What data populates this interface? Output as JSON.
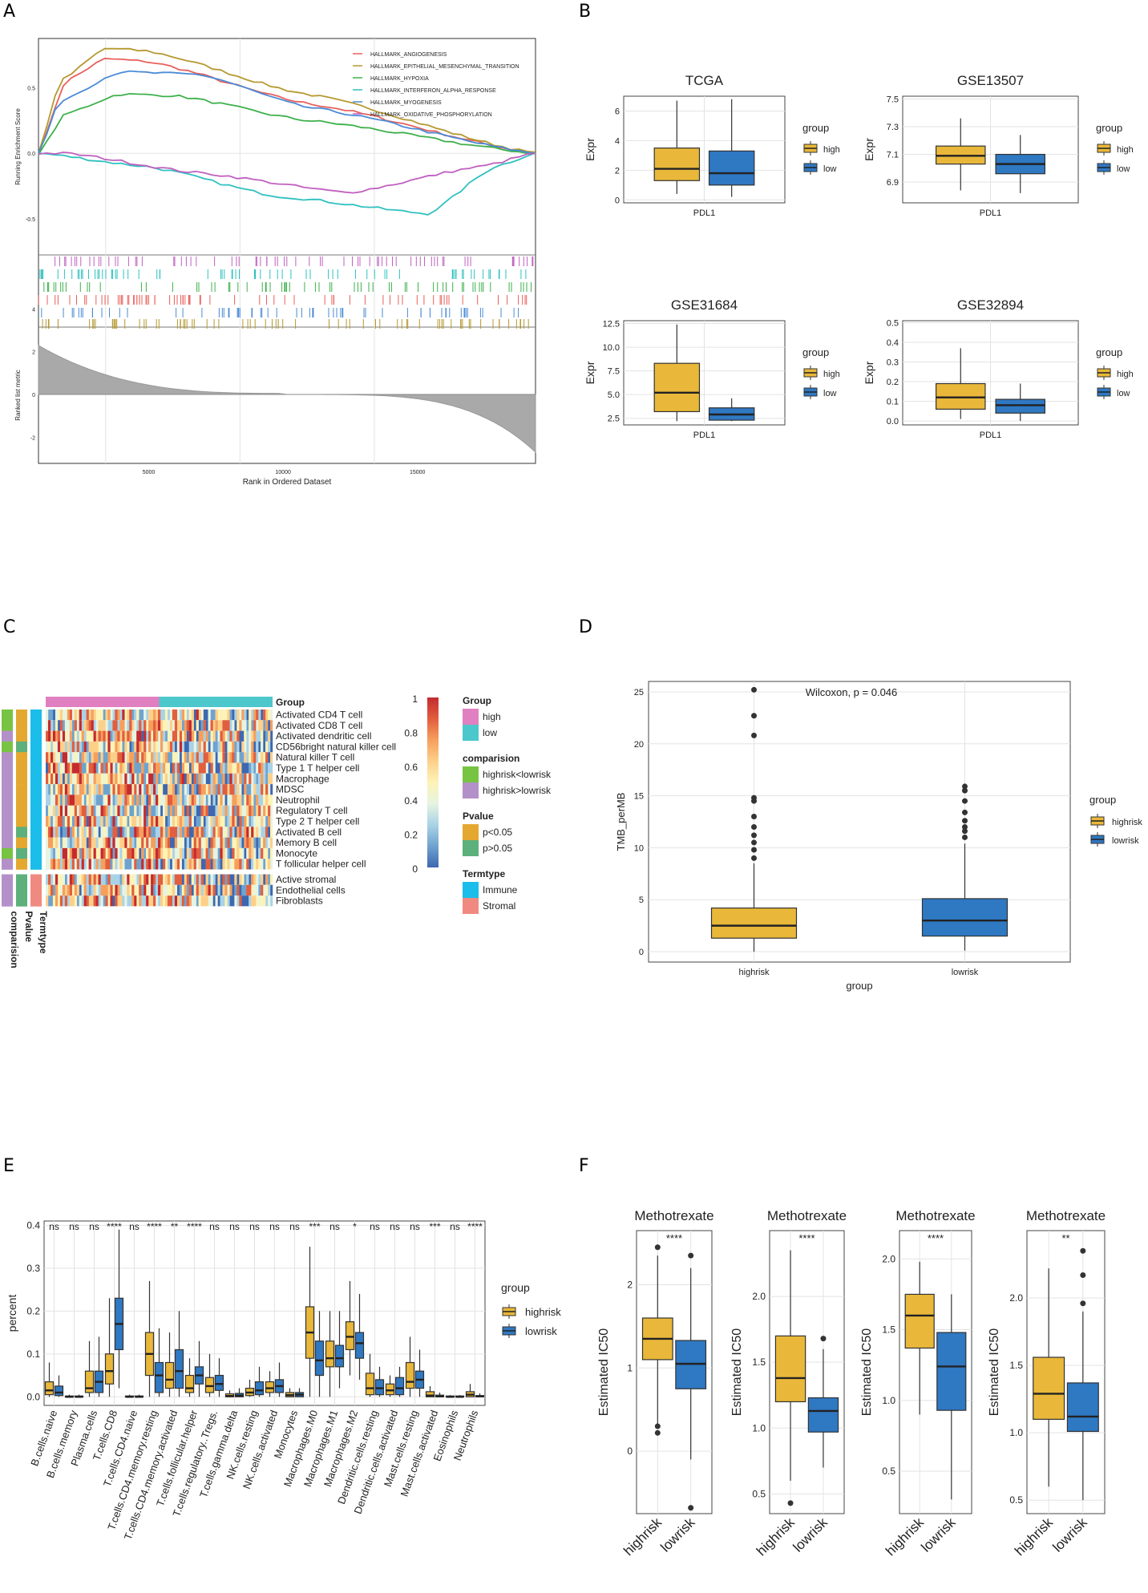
{
  "panel_labels": [
    "A",
    "B",
    "C",
    "D",
    "E",
    "F"
  ],
  "colors": {
    "high": "#E9B83A",
    "low": "#2F78C2",
    "pink": "#E080C0",
    "teal": "#4CC7CC",
    "green": "#76C442",
    "lavender": "#B490C9",
    "cyan": "#1BBDEA",
    "salmon": "#F08A80",
    "darkgreen": "#5DB07C",
    "gold": "#E4A830",
    "grid": "#e3e3e3",
    "gsea": [
      "#E8605C",
      "#B59930",
      "#3DB04B",
      "#2FC1C0",
      "#4A8BD6",
      "#C060C0"
    ]
  },
  "chart_data": [
    {
      "panel": "A",
      "type": "line",
      "ylabel": "Running Enrichment Score",
      "xlabel": "Rank in Ordered Dataset",
      "xticks": [
        "5000",
        "10000",
        "15000"
      ],
      "yticks": [
        "0.5",
        "0.0",
        "-0.5"
      ],
      "metric_ylabel": "Ranked list metric",
      "metric_yticks": [
        "4",
        "2",
        "0",
        "-2"
      ],
      "xlim": [
        0,
        18500
      ],
      "ylim": [
        -0.75,
        0.85
      ],
      "series": [
        {
          "name": "HALLMARK_ANGIOGENESIS",
          "x": [
            0,
            1000,
            2500,
            4000,
            10000,
            18500
          ],
          "y": [
            0,
            0.55,
            0.72,
            0.7,
            0.38,
            0
          ]
        },
        {
          "name": "HALLMARK_EPITHELIAL_MESENCHYMAL_TRANSITION",
          "x": [
            0,
            800,
            2500,
            4000,
            10000,
            18500
          ],
          "y": [
            0,
            0.55,
            0.8,
            0.78,
            0.45,
            0
          ]
        },
        {
          "name": "HALLMARK_HYPOXIA",
          "x": [
            0,
            1000,
            3000,
            5000,
            10000,
            18500
          ],
          "y": [
            0,
            0.3,
            0.45,
            0.44,
            0.25,
            0
          ]
        },
        {
          "name": "HALLMARK_INTERFERON_ALPHA_RESPONSE",
          "x": [
            0,
            4000,
            9000,
            14500,
            17000,
            18500
          ],
          "y": [
            0,
            -0.1,
            -0.33,
            -0.46,
            -0.1,
            0
          ]
        },
        {
          "name": "HALLMARK_MYOGENESIS",
          "x": [
            0,
            800,
            3000,
            6000,
            10000,
            18500
          ],
          "y": [
            0,
            0.4,
            0.62,
            0.6,
            0.35,
            0
          ]
        },
        {
          "name": "HALLMARK_OXIDATIVE_PHOSPHORYLATION",
          "x": [
            0,
            1000,
            6000,
            11500,
            16500,
            18500
          ],
          "y": [
            0,
            0.0,
            -0.15,
            -0.3,
            -0.1,
            0
          ]
        }
      ]
    },
    {
      "panel": "B",
      "type": "box",
      "legend_title": "group",
      "legend": [
        "high",
        "low"
      ],
      "ylabel": "Expr",
      "xlabel": "PDL1",
      "plots": [
        {
          "title": "TCGA",
          "yticks": [
            "0",
            "2",
            "4",
            "6"
          ],
          "ylim": [
            -0.2,
            7
          ],
          "boxes": [
            {
              "name": "high",
              "min": 0.4,
              "q1": 1.3,
              "med": 2.1,
              "q3": 3.5,
              "max": 6.7
            },
            {
              "name": "low",
              "min": 0.2,
              "q1": 1.0,
              "med": 1.8,
              "q3": 3.3,
              "max": 6.8
            }
          ]
        },
        {
          "title": "GSE13507",
          "yticks": [
            "6.9",
            "7.1",
            "7.3",
            "7.5"
          ],
          "ylim": [
            6.75,
            7.52
          ],
          "boxes": [
            {
              "name": "high",
              "min": 6.84,
              "q1": 7.03,
              "med": 7.09,
              "q3": 7.16,
              "max": 7.36
            },
            {
              "name": "low",
              "min": 6.82,
              "q1": 6.96,
              "med": 7.03,
              "q3": 7.1,
              "max": 7.24
            }
          ]
        },
        {
          "title": "GSE31684",
          "yticks": [
            "2.5",
            "5.0",
            "7.5",
            "10.0",
            "12.5"
          ],
          "ylim": [
            1.8,
            12.8
          ],
          "boxes": [
            {
              "name": "high",
              "min": 2.2,
              "q1": 3.2,
              "med": 5.2,
              "q3": 8.3,
              "max": 12.4
            },
            {
              "name": "low",
              "min": 2.2,
              "q1": 2.3,
              "med": 2.9,
              "q3": 3.6,
              "max": 4.6
            }
          ]
        },
        {
          "title": "GSE32894",
          "yticks": [
            "0.0",
            "0.1",
            "0.2",
            "0.3",
            "0.4",
            "0.5"
          ],
          "ylim": [
            -0.02,
            0.51
          ],
          "boxes": [
            {
              "name": "high",
              "min": 0.01,
              "q1": 0.06,
              "med": 0.12,
              "q3": 0.19,
              "max": 0.37
            },
            {
              "name": "low",
              "min": 0.0,
              "q1": 0.04,
              "med": 0.08,
              "q3": 0.11,
              "max": 0.19
            }
          ]
        }
      ]
    },
    {
      "panel": "C",
      "type": "heatmap",
      "annotation_title": "Group",
      "rows": [
        "Activated CD4 T cell",
        "Activated CD8 T cell",
        "Activated dendritic cell",
        "CD56bright natural killer cell",
        "Natural killer T cell",
        "Type 1 T helper cell",
        "Macrophage",
        "MDSC",
        "Neutrophil",
        "Regulatory T cell",
        "Type 2 T helper cell",
        "Activated B cell",
        "Memory B cell",
        "Monocyte",
        "T follicular helper cell",
        "Active stromal",
        "Endothelial cells",
        "Fibroblasts"
      ],
      "side_labels": [
        "comparision",
        "Pvalue",
        "Termtype"
      ],
      "scale_ticks": [
        "1",
        "0.8",
        "0.6",
        "0.4",
        "0.2",
        "0"
      ],
      "legend_groups": [
        {
          "title": "Group",
          "items": [
            "high",
            "low"
          ]
        },
        {
          "title": "comparision",
          "items": [
            "highrisk<lowrisk",
            "highrisk>lowrisk"
          ]
        },
        {
          "title": "Pvalue",
          "items": [
            "p<0.05",
            "p>0.05"
          ]
        },
        {
          "title": "Termtype",
          "items": [
            "Immune",
            "Stromal"
          ]
        }
      ]
    },
    {
      "panel": "D",
      "type": "box",
      "annotation": "Wilcoxon, p = 0.046",
      "ylabel": "TMB_perMB",
      "xlabel": "group",
      "categories": [
        "highrisk",
        "lowrisk"
      ],
      "yticks": [
        "0",
        "5",
        "10",
        "15",
        "20",
        "25"
      ],
      "ylim": [
        -1,
        26
      ],
      "legend_title": "group",
      "legend": [
        "highrisk",
        "lowrisk"
      ],
      "boxes": [
        {
          "name": "highrisk",
          "min": 0,
          "q1": 1.3,
          "med": 2.5,
          "q3": 4.2,
          "max": 8.5,
          "outliers": [
            9,
            9.8,
            10.5,
            11.2,
            12,
            13,
            14.5,
            14.8,
            20.8,
            22.7,
            25.2
          ]
        },
        {
          "name": "lowrisk",
          "min": 0.1,
          "q1": 1.5,
          "med": 3.0,
          "q3": 5.1,
          "max": 10.4,
          "outliers": [
            11,
            11.6,
            12,
            12.6,
            13.4,
            14.5,
            15.5,
            15.9
          ]
        }
      ]
    },
    {
      "panel": "E",
      "type": "box",
      "ylabel": "percent",
      "yticks": [
        "0.0",
        "0.1",
        "0.2",
        "0.3",
        "0.4"
      ],
      "ylim": [
        -0.02,
        0.41
      ],
      "legend_title": "group",
      "legend": [
        "highrisk",
        "lowrisk"
      ],
      "categories": [
        "B.cells.naive",
        "B.cells.memory",
        "Plasma.cells",
        "T.cells.CD8",
        "T.cells.CD4.naive",
        "T.cells.CD4.memory.resting",
        "T.cells.CD4.memory.activated",
        "T.cells.follicular.helper",
        "T.cells.regulatory..Tregs.",
        "T.cells.gamma.delta",
        "NK.cells.resting",
        "NK.cells.activated",
        "Monocytes",
        "Macrophages.M0",
        "Macrophages.M1",
        "Macrophages.M2",
        "Dendritic.cells.resting",
        "Dendritic.cells.activated",
        "Mast.cells.resting",
        "Mast.cells.activated",
        "Eosinophils",
        "Neutrophils"
      ],
      "significance": [
        "ns",
        "ns",
        "ns",
        "****",
        "ns",
        "****",
        "**",
        "****",
        "ns",
        "ns",
        "ns",
        "ns",
        "ns",
        "***",
        "ns",
        "*",
        "ns",
        "ns",
        "ns",
        "***",
        "ns",
        "****"
      ],
      "boxes": [
        [
          {
            "min": 0,
            "q1": 0.005,
            "med": 0.015,
            "q3": 0.035,
            "max": 0.08
          },
          {
            "min": 0,
            "q1": 0.003,
            "med": 0.01,
            "q3": 0.025,
            "max": 0.05
          }
        ],
        [
          {
            "min": 0,
            "q1": 0,
            "med": 0,
            "q3": 0.002,
            "max": 0.005
          },
          {
            "min": 0,
            "q1": 0,
            "med": 0,
            "q3": 0.002,
            "max": 0.005
          }
        ],
        [
          {
            "min": 0,
            "q1": 0.01,
            "med": 0.02,
            "q3": 0.06,
            "max": 0.13
          },
          {
            "min": 0,
            "q1": 0.01,
            "med": 0.035,
            "q3": 0.06,
            "max": 0.14
          }
        ],
        [
          {
            "min": 0,
            "q1": 0.03,
            "med": 0.06,
            "q3": 0.1,
            "max": 0.23
          },
          {
            "min": 0.02,
            "q1": 0.11,
            "med": 0.17,
            "q3": 0.23,
            "max": 0.39
          }
        ],
        [
          {
            "min": 0,
            "q1": 0,
            "med": 0,
            "q3": 0.002,
            "max": 0.005
          },
          {
            "min": 0,
            "q1": 0,
            "med": 0,
            "q3": 0.002,
            "max": 0.005
          }
        ],
        [
          {
            "min": 0,
            "q1": 0.05,
            "med": 0.1,
            "q3": 0.15,
            "max": 0.27
          },
          {
            "min": 0,
            "q1": 0.01,
            "med": 0.05,
            "q3": 0.08,
            "max": 0.16
          }
        ],
        [
          {
            "min": 0,
            "q1": 0.02,
            "med": 0.04,
            "q3": 0.08,
            "max": 0.15
          },
          {
            "min": 0,
            "q1": 0.02,
            "med": 0.06,
            "q3": 0.11,
            "max": 0.2
          }
        ],
        [
          {
            "min": 0,
            "q1": 0.01,
            "med": 0.02,
            "q3": 0.05,
            "max": 0.09
          },
          {
            "min": 0,
            "q1": 0.03,
            "med": 0.05,
            "q3": 0.07,
            "max": 0.13
          }
        ],
        [
          {
            "min": 0,
            "q1": 0.01,
            "med": 0.025,
            "q3": 0.045,
            "max": 0.1
          },
          {
            "min": 0,
            "q1": 0.015,
            "med": 0.03,
            "q3": 0.05,
            "max": 0.09
          }
        ],
        [
          {
            "min": 0,
            "q1": 0,
            "med": 0.002,
            "q3": 0.007,
            "max": 0.015
          },
          {
            "min": 0,
            "q1": 0,
            "med": 0.003,
            "q3": 0.008,
            "max": 0.02
          }
        ],
        [
          {
            "min": 0,
            "q1": 0.003,
            "med": 0.01,
            "q3": 0.02,
            "max": 0.04
          },
          {
            "min": 0,
            "q1": 0.005,
            "med": 0.015,
            "q3": 0.035,
            "max": 0.07
          }
        ],
        [
          {
            "min": 0,
            "q1": 0.01,
            "med": 0.02,
            "q3": 0.035,
            "max": 0.06
          },
          {
            "min": 0,
            "q1": 0.01,
            "med": 0.025,
            "q3": 0.04,
            "max": 0.08
          }
        ],
        [
          {
            "min": 0,
            "q1": 0,
            "med": 0.004,
            "q3": 0.01,
            "max": 0.02
          },
          {
            "min": 0,
            "q1": 0,
            "med": 0.005,
            "q3": 0.01,
            "max": 0.02
          }
        ],
        [
          {
            "min": 0,
            "q1": 0.09,
            "med": 0.15,
            "q3": 0.21,
            "max": 0.35
          },
          {
            "min": 0,
            "q1": 0.05,
            "med": 0.085,
            "q3": 0.13,
            "max": 0.2
          }
        ],
        [
          {
            "min": 0,
            "q1": 0.07,
            "med": 0.09,
            "q3": 0.13,
            "max": 0.2
          },
          {
            "min": 0.02,
            "q1": 0.07,
            "med": 0.09,
            "q3": 0.12,
            "max": 0.2
          }
        ],
        [
          {
            "min": 0.05,
            "q1": 0.11,
            "med": 0.14,
            "q3": 0.175,
            "max": 0.27
          },
          {
            "min": 0.04,
            "q1": 0.09,
            "med": 0.125,
            "q3": 0.15,
            "max": 0.24
          }
        ],
        [
          {
            "min": 0,
            "q1": 0.005,
            "med": 0.02,
            "q3": 0.055,
            "max": 0.1
          },
          {
            "min": 0,
            "q1": 0.005,
            "med": 0.02,
            "q3": 0.04,
            "max": 0.07
          }
        ],
        [
          {
            "min": 0,
            "q1": 0.005,
            "med": 0.015,
            "q3": 0.03,
            "max": 0.05
          },
          {
            "min": 0,
            "q1": 0.005,
            "med": 0.02,
            "q3": 0.045,
            "max": 0.07
          }
        ],
        [
          {
            "min": 0,
            "q1": 0.02,
            "med": 0.035,
            "q3": 0.08,
            "max": 0.14
          },
          {
            "min": 0,
            "q1": 0.02,
            "med": 0.04,
            "q3": 0.06,
            "max": 0.11
          }
        ],
        [
          {
            "min": 0,
            "q1": 0,
            "med": 0.003,
            "q3": 0.012,
            "max": 0.025
          },
          {
            "min": 0,
            "q1": 0,
            "med": 0.001,
            "q3": 0.004,
            "max": 0.01
          }
        ],
        [
          {
            "min": 0,
            "q1": 0,
            "med": 0,
            "q3": 0.002,
            "max": 0.004
          },
          {
            "min": 0,
            "q1": 0,
            "med": 0,
            "q3": 0.002,
            "max": 0.004
          }
        ],
        [
          {
            "min": 0,
            "q1": 0,
            "med": 0.005,
            "q3": 0.012,
            "max": 0.03
          },
          {
            "min": 0,
            "q1": 0,
            "med": 0.001,
            "q3": 0.003,
            "max": 0.008
          }
        ]
      ]
    },
    {
      "panel": "F",
      "type": "box",
      "ylabel": "Estimated IC50",
      "categories": [
        "highrisk",
        "lowrisk"
      ],
      "plots": [
        {
          "title": "Methotrexate",
          "sig": "****",
          "yticks": [
            "0",
            "1",
            "2"
          ],
          "ylim": [
            -0.75,
            2.65
          ],
          "boxes": [
            {
              "min": 0.3,
              "q1": 1.1,
              "med": 1.35,
              "q3": 1.6,
              "max": 2.35,
              "outliers": [
                0.22,
                0.3,
                2.45
              ]
            },
            {
              "min": -0.1,
              "q1": 0.75,
              "med": 1.05,
              "q3": 1.33,
              "max": 2.2,
              "outliers": [
                -0.68,
                2.35
              ]
            }
          ]
        },
        {
          "title": "Methotrexate",
          "sig": "****",
          "yticks": [
            "0.5",
            "1.0",
            "1.5",
            "2.0"
          ],
          "ylim": [
            0.35,
            2.5
          ],
          "boxes": [
            {
              "min": 0.6,
              "q1": 1.2,
              "med": 1.38,
              "q3": 1.7,
              "max": 2.35,
              "outliers": [
                0.43
              ]
            },
            {
              "min": 0.7,
              "q1": 0.97,
              "med": 1.13,
              "q3": 1.23,
              "max": 1.6,
              "outliers": [
                1.68
              ]
            }
          ]
        },
        {
          "title": "Methotrexate",
          "sig": "****",
          "yticks": [
            "0.5",
            "1.0",
            "1.5",
            "2.0"
          ],
          "ylim": [
            0.2,
            2.2
          ],
          "boxes": [
            {
              "min": 0.9,
              "q1": 1.37,
              "med": 1.6,
              "q3": 1.75,
              "max": 1.98,
              "outliers": []
            },
            {
              "min": 0.3,
              "q1": 0.93,
              "med": 1.24,
              "q3": 1.48,
              "max": 1.75,
              "outliers": []
            }
          ]
        },
        {
          "title": "Methotrexate",
          "sig": "**",
          "yticks": [
            "0.5",
            "1.0",
            "1.5",
            "2.0"
          ],
          "ylim": [
            0.4,
            2.5
          ],
          "boxes": [
            {
              "min": 0.6,
              "q1": 1.1,
              "med": 1.29,
              "q3": 1.56,
              "max": 2.22,
              "outliers": []
            },
            {
              "min": 0.5,
              "q1": 1.01,
              "med": 1.12,
              "q3": 1.37,
              "max": 1.9,
              "outliers": [
                1.96,
                2.17,
                2.35
              ]
            }
          ]
        }
      ]
    }
  ]
}
